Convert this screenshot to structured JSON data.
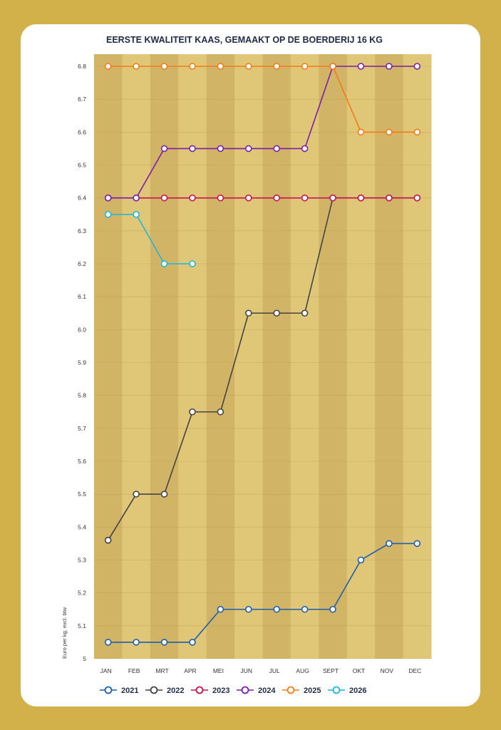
{
  "chart_data": {
    "type": "line",
    "title": "EERSTE KWALITEIT KAAS, GEMAAKT OP DE BOERDERIJ 16 KG",
    "xlabel": "",
    "ylabel": "Euro per kg, excl. btw",
    "categories": [
      "JAN",
      "FEB",
      "MRT",
      "APR",
      "MEI",
      "JUN",
      "JUL",
      "AUG",
      "SEPT",
      "OKT",
      "NOV",
      "DEC"
    ],
    "ylim": [
      5,
      6.85
    ],
    "yticks": [
      "5",
      "5.1",
      "5.2",
      "5.3",
      "5.4",
      "5.5",
      "5.6",
      "5.7",
      "5.8",
      "5.9",
      "6.0",
      "6.1",
      "6.2",
      "6.3",
      "6.4",
      "6.5",
      "6.6",
      "6.7",
      "6.8"
    ],
    "legend_position": "bottom",
    "grid": true,
    "colors": {
      "band_dark": "#d2b466",
      "band_light": "#e0c677",
      "grid_line": "#b89a4e",
      "page_background": "#d2b04a",
      "card_background": "#ffffff"
    },
    "series": [
      {
        "name": "2021",
        "color": "#1f5ea8",
        "values": [
          5.05,
          5.05,
          5.05,
          5.05,
          5.15,
          5.15,
          5.15,
          5.15,
          5.15,
          5.3,
          5.35,
          5.35
        ]
      },
      {
        "name": "2022",
        "color": "#444444",
        "values": [
          5.36,
          5.5,
          5.5,
          5.75,
          5.75,
          6.05,
          6.05,
          6.05,
          6.4,
          6.4,
          6.4,
          6.4
        ]
      },
      {
        "name": "2023",
        "color": "#c4134f",
        "values": [
          6.4,
          6.4,
          6.4,
          6.4,
          6.4,
          6.4,
          6.4,
          6.4,
          6.4,
          6.4,
          6.4,
          6.4
        ]
      },
      {
        "name": "2024",
        "color": "#7b1fa8",
        "values": [
          6.4,
          6.4,
          6.55,
          6.55,
          6.55,
          6.55,
          6.55,
          6.55,
          6.8,
          6.8,
          6.8,
          6.8
        ]
      },
      {
        "name": "2025",
        "color": "#f07d1a",
        "values": [
          6.8,
          6.8,
          6.8,
          6.8,
          6.8,
          6.8,
          6.8,
          6.8,
          6.8,
          6.6,
          6.6,
          6.6
        ]
      },
      {
        "name": "2026",
        "color": "#1fb6d9",
        "values": [
          6.35,
          6.35,
          6.2,
          6.2,
          null,
          null,
          null,
          null,
          null,
          null,
          null,
          null
        ]
      }
    ]
  }
}
